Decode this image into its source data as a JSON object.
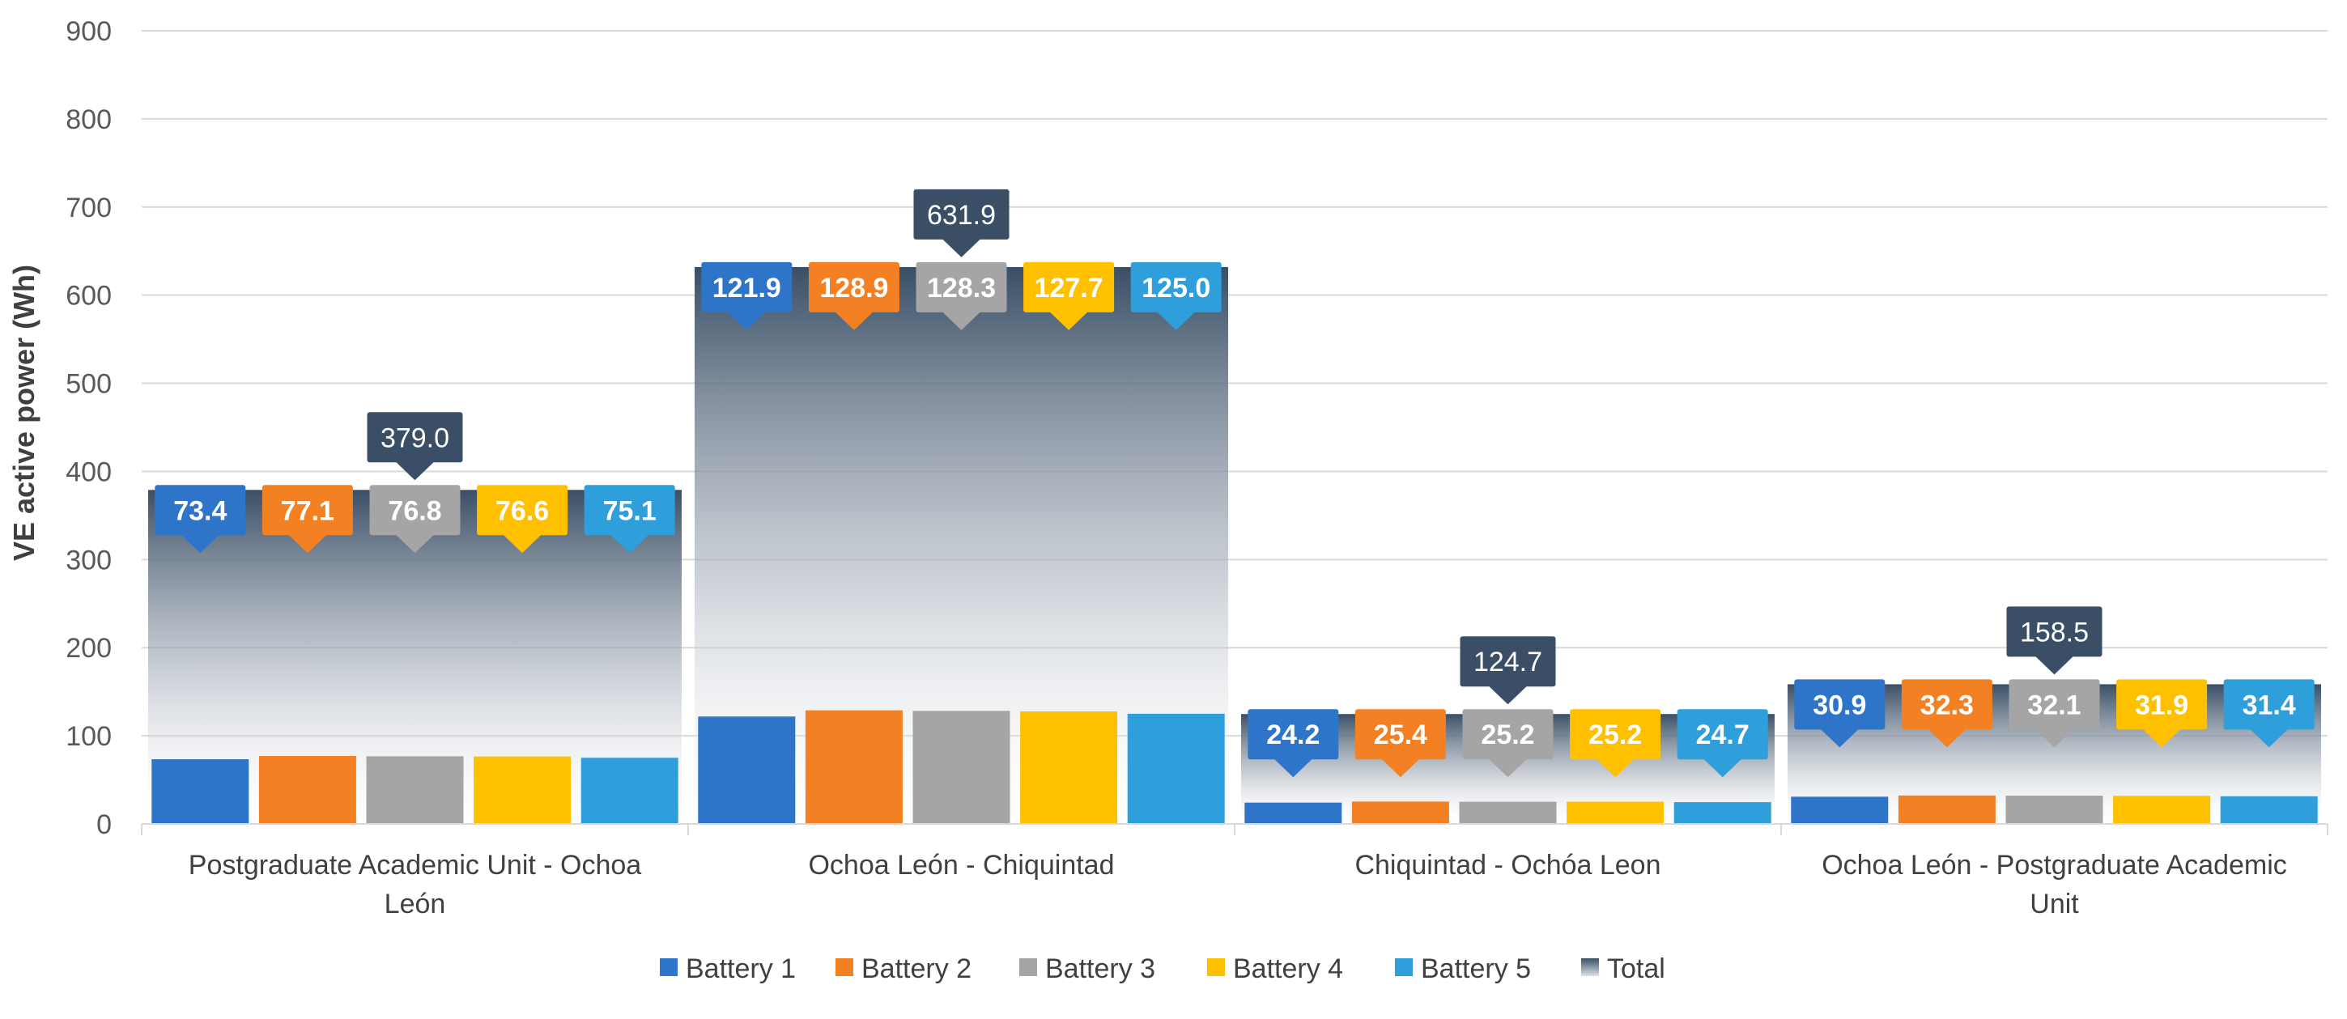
{
  "chart_data": {
    "type": "bar",
    "title": "",
    "xlabel": "",
    "ylabel": "VE active power (Wh)",
    "ylim": [
      0,
      900
    ],
    "yticks": [
      0,
      100,
      200,
      300,
      400,
      500,
      600,
      700,
      800,
      900
    ],
    "grid": true,
    "legend_position": "bottom",
    "categories": [
      [
        "Postgraduate Academic Unit - Ochoa",
        "León"
      ],
      [
        "Ochoa León - Chiquintad"
      ],
      [
        "Chiquintad - Ochóa Leon"
      ],
      [
        "Ochoa León - Postgraduate Academic",
        "Unit"
      ]
    ],
    "series": [
      {
        "name": "Battery 1",
        "color": "#2E75C9",
        "values": [
          73.4,
          121.9,
          24.2,
          30.9
        ],
        "labels": [
          "73.4",
          "121.9",
          "24.2",
          "30.9"
        ]
      },
      {
        "name": "Battery 2",
        "color": "#F48024",
        "values": [
          77.1,
          128.9,
          25.4,
          32.3
        ],
        "labels": [
          "77.1",
          "128.9",
          "25.4",
          "32.3"
        ]
      },
      {
        "name": "Battery 3",
        "color": "#A5A5A5",
        "values": [
          76.8,
          128.3,
          25.2,
          32.1
        ],
        "labels": [
          "76.8",
          "128.3",
          "25.2",
          "32.1"
        ]
      },
      {
        "name": "Battery 4",
        "color": "#FFC000",
        "values": [
          76.6,
          127.7,
          25.2,
          31.9
        ],
        "labels": [
          "76.6",
          "127.7",
          "25.2",
          "31.9"
        ]
      },
      {
        "name": "Battery 5",
        "color": "#2E9FDB",
        "values": [
          75.1,
          125.0,
          24.7,
          31.4
        ],
        "labels": [
          "75.1",
          "125.0",
          "24.7",
          "31.4"
        ]
      }
    ],
    "total": {
      "name": "Total",
      "color": "#3A4F66",
      "values": [
        379.0,
        631.9,
        124.7,
        158.5
      ],
      "labels": [
        "379.0",
        "631.9",
        "124.7",
        "158.5"
      ]
    }
  }
}
